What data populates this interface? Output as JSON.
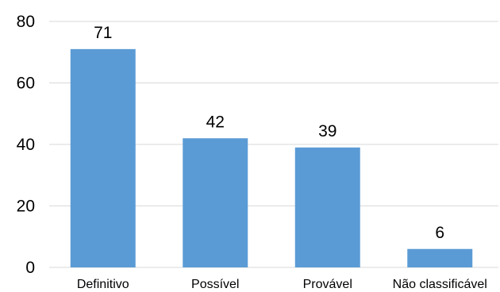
{
  "chart_data": {
    "type": "bar",
    "categories": [
      "Definitivo",
      "Possível",
      "Provável",
      "Não classificável"
    ],
    "values": [
      71,
      42,
      39,
      6
    ],
    "ylim": [
      0,
      80
    ],
    "yticks": [
      "0",
      "20",
      "40",
      "60",
      "80"
    ],
    "grid": true,
    "legend": "none",
    "data_labels": [
      "71",
      "42",
      "39",
      "6"
    ],
    "colors": {
      "bar": "#5b9bd5",
      "grid": "#d9d9d9"
    }
  }
}
